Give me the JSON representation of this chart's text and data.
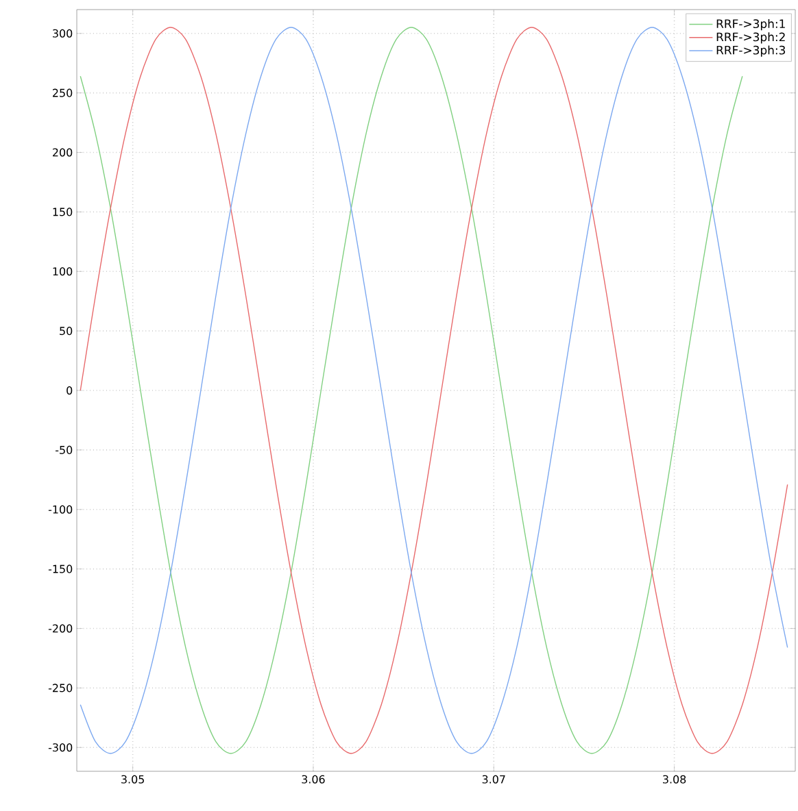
{
  "chart_data": {
    "type": "line",
    "x": [
      3.0471,
      3.04793,
      3.04877,
      3.0496,
      3.05043,
      3.05127,
      3.0521,
      3.05293,
      3.05377,
      3.0546,
      3.05543,
      3.05627,
      3.0571,
      3.05793,
      3.05877,
      3.0596,
      3.06043,
      3.06127,
      3.0621,
      3.06293,
      3.06377,
      3.0646,
      3.06543,
      3.06627,
      3.0671,
      3.06793,
      3.06877,
      3.0696,
      3.07043,
      3.07127,
      3.0721,
      3.07293,
      3.07377,
      3.0746,
      3.07543,
      3.07627,
      3.0771,
      3.07793,
      3.07877,
      3.0796,
      3.08043,
      3.08127,
      3.0821,
      3.08293,
      3.08377,
      3.0846,
      3.08543,
      3.08627
    ],
    "series": [
      {
        "name": "RRF->3ph:1",
        "color": "#80d080",
        "values": [
          264,
          216,
          153,
          79,
          0,
          -79,
          -153,
          -216,
          -264,
          -295,
          -305,
          -295,
          -264,
          -216,
          -153,
          -79,
          0,
          79,
          153,
          216,
          264,
          295,
          305,
          295,
          264,
          216,
          153,
          79,
          0,
          -79,
          -153,
          -216,
          -264,
          -295,
          -305,
          -295,
          -264,
          -216,
          -153,
          -79,
          0,
          79,
          153,
          216,
          264,
          null,
          null,
          null
        ]
      },
      {
        "name": "RRF->3ph:2",
        "color": "#e8696b",
        "values": [
          0,
          79,
          153,
          216,
          264,
          295,
          305,
          295,
          264,
          216,
          153,
          79,
          0,
          -79,
          -153,
          -216,
          -264,
          -295,
          -305,
          -295,
          -264,
          -216,
          -153,
          -79,
          0,
          79,
          153,
          216,
          264,
          295,
          305,
          295,
          264,
          216,
          153,
          79,
          0,
          -79,
          -153,
          -216,
          -264,
          -295,
          -305,
          -295,
          -264,
          -216,
          -153,
          -79
        ]
      },
      {
        "name": "RRF->3ph:3",
        "color": "#7ca8f0",
        "values": [
          -264,
          -295,
          -305,
          -295,
          -264,
          -216,
          -153,
          -79,
          0,
          79,
          153,
          216,
          264,
          295,
          305,
          295,
          264,
          216,
          153,
          79,
          0,
          -79,
          -153,
          -216,
          -264,
          -295,
          -305,
          -295,
          -264,
          -216,
          -153,
          -79,
          0,
          79,
          153,
          216,
          264,
          295,
          305,
          295,
          264,
          216,
          153,
          79,
          0,
          -79,
          -153,
          -216
        ]
      }
    ],
    "xlim": [
      3.0469,
      3.0867
    ],
    "ylim": [
      -320,
      320
    ],
    "xticks": [
      3.05,
      3.06,
      3.07,
      3.08
    ],
    "yticks": [
      -300,
      -250,
      -200,
      -150,
      -100,
      -50,
      0,
      50,
      100,
      150,
      200,
      250,
      300
    ],
    "grid": true,
    "legend": "top right",
    "marker": "none",
    "line_style": "solid"
  }
}
